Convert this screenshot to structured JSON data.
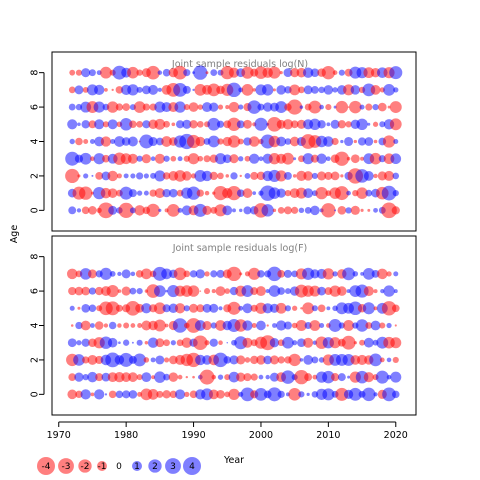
{
  "chart_data": [
    {
      "type": "scatter",
      "subtype": "bubble",
      "title": "Joint sample residuals log(N)",
      "ylabel": "Age",
      "xlabel": "Year",
      "xlim": [
        1969,
        2023
      ],
      "ylim": [
        -1.2,
        9.2
      ],
      "xticks": [
        1970,
        1980,
        1990,
        2000,
        2010,
        2020
      ],
      "yticks": [
        0,
        2,
        4,
        6,
        8
      ],
      "years": [
        1972,
        2020
      ],
      "ages": [
        0,
        1,
        2,
        3,
        4,
        5,
        6,
        7,
        8
      ],
      "positive_color": "#0000ff",
      "negative_color": "#ff0000",
      "seed": 7,
      "note_values": "bubble area encodes residual magnitude; values sampled per year-age cell"
    },
    {
      "type": "scatter",
      "subtype": "bubble",
      "title": "Joint sample residuals log(F)",
      "ylabel": "",
      "xlabel": "Year",
      "xlim": [
        1969,
        2023
      ],
      "ylim": [
        -1.2,
        9.2
      ],
      "xticks": [
        1970,
        1980,
        1990,
        2000,
        2010,
        2020
      ],
      "yticks": [
        0,
        2,
        4,
        6,
        8
      ],
      "years": [
        1972,
        2020
      ],
      "ages": [
        0,
        1,
        2,
        3,
        4,
        5,
        6,
        7
      ],
      "positive_color": "#0000ff",
      "negative_color": "#ff0000",
      "seed": 19
    }
  ],
  "shared": {
    "ylabel": "Age",
    "xlabel": "Year"
  },
  "legend": {
    "values": [
      -4,
      -3,
      -2,
      -1,
      0,
      1,
      2,
      3,
      4
    ],
    "labels": [
      "-4",
      "-3",
      "-2",
      "-1",
      "0",
      "1",
      "2",
      "3",
      "4"
    ]
  }
}
